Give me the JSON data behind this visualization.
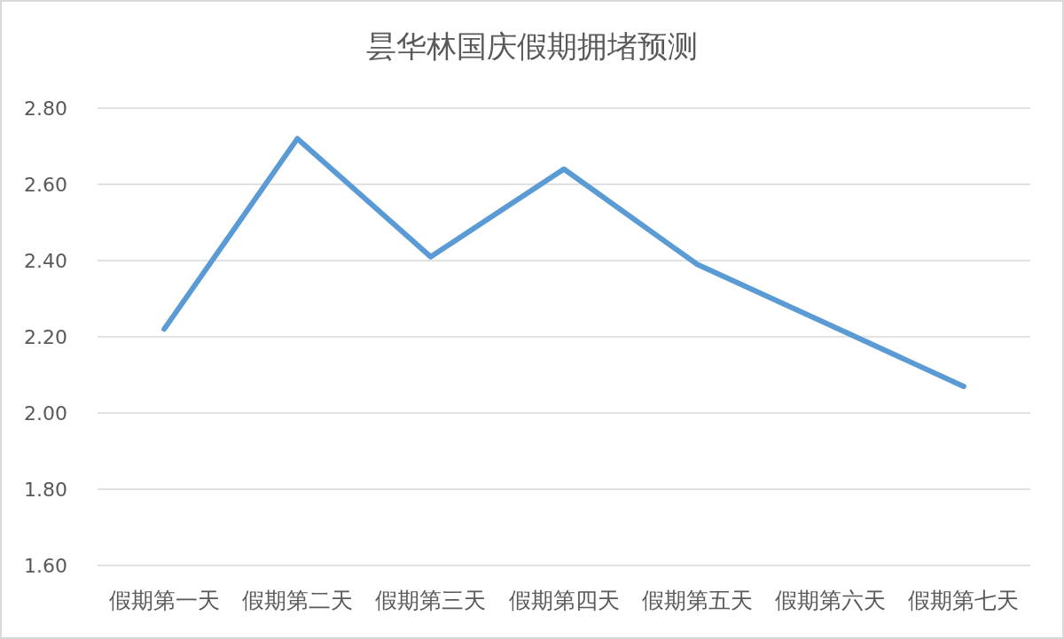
{
  "chart_data": {
    "type": "line",
    "title": "昙华林国庆假期拥堵预测",
    "categories": [
      "假期第一天",
      "假期第二天",
      "假期第三天",
      "假期第四天",
      "假期第五天",
      "假期第六天",
      "假期第七天"
    ],
    "series": [
      {
        "color": "#5b9bd5",
        "values": [
          2.22,
          2.72,
          2.41,
          2.64,
          2.39,
          2.23,
          2.07
        ]
      }
    ],
    "ylim": [
      1.6,
      2.8
    ],
    "yticks": [
      {
        "value": 1.6,
        "label": "1.60"
      },
      {
        "value": 1.8,
        "label": "1.80"
      },
      {
        "value": 2.0,
        "label": "2.00"
      },
      {
        "value": 2.2,
        "label": "2.20"
      },
      {
        "value": 2.4,
        "label": "2.40"
      },
      {
        "value": 2.6,
        "label": "2.60"
      },
      {
        "value": 2.8,
        "label": "2.80"
      }
    ],
    "grid": true,
    "marker": "none",
    "line_style": "solid"
  }
}
